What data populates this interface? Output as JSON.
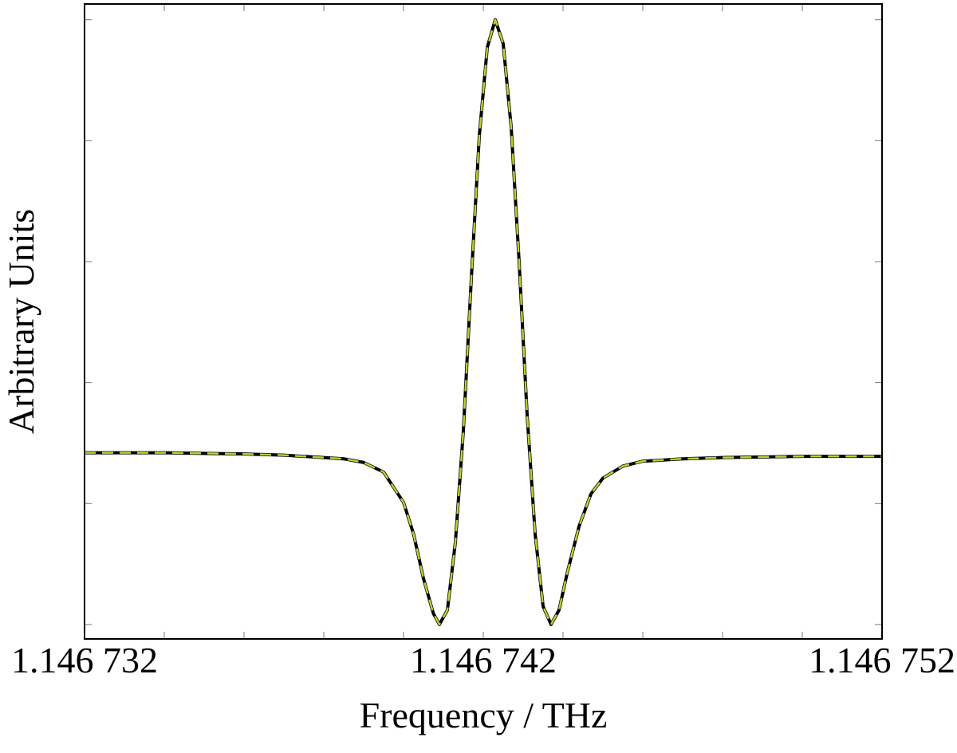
{
  "chart_data": {
    "type": "line",
    "xlabel": "Frequency / THz",
    "ylabel": "Arbitrary Units",
    "x": [
      1.146732,
      1.146734,
      1.146736,
      1.146737,
      1.146738,
      1.1467385,
      1.146739,
      1.1467395,
      1.14674,
      1.14674025,
      1.1467405,
      1.14674075,
      1.1467409,
      1.1467411,
      1.1467413,
      1.1467415,
      1.1467417,
      1.1467419,
      1.1467421,
      1.1467423,
      1.1467425,
      1.1467427,
      1.1467429,
      1.1467431,
      1.1467433,
      1.1467435,
      1.1467437,
      1.1467439,
      1.1467441,
      1.1467444,
      1.1467447,
      1.146745,
      1.1467455,
      1.146746,
      1.146747,
      1.146748,
      1.14675,
      1.146752
    ],
    "series": [
      {
        "color": "#000000",
        "dash": "solid",
        "values": [
          1.42,
          1.42,
          1.41,
          1.4,
          1.38,
          1.37,
          1.34,
          1.26,
          1.01,
          0.75,
          0.38,
          0.09,
          0.0,
          0.12,
          0.68,
          1.6,
          2.86,
          4.04,
          4.77,
          5.0,
          4.8,
          4.11,
          2.99,
          1.73,
          0.75,
          0.15,
          0.0,
          0.12,
          0.42,
          0.81,
          1.08,
          1.21,
          1.31,
          1.35,
          1.37,
          1.38,
          1.39,
          1.39
        ]
      },
      {
        "color": "#b5d334",
        "dash": "dashed",
        "values": [
          1.42,
          1.42,
          1.41,
          1.4,
          1.38,
          1.37,
          1.34,
          1.26,
          1.01,
          0.75,
          0.38,
          0.09,
          0.0,
          0.12,
          0.68,
          1.6,
          2.86,
          4.04,
          4.77,
          5.0,
          4.8,
          4.11,
          2.99,
          1.73,
          0.75,
          0.15,
          0.0,
          0.12,
          0.42,
          0.81,
          1.08,
          1.21,
          1.31,
          1.35,
          1.37,
          1.38,
          1.39,
          1.39
        ]
      }
    ],
    "xlim": [
      1.146732,
      1.146752
    ],
    "xticks": [
      {
        "value": 1.146732,
        "label": "1.146 732"
      },
      {
        "value": 1.146742,
        "label": "1.146 742"
      },
      {
        "value": 1.146752,
        "label": "1.146 752"
      }
    ],
    "xminorticks": [
      1.146734,
      1.146736,
      1.146738,
      1.14674,
      1.146744,
      1.146746,
      1.146748,
      1.14675
    ],
    "ylim": [
      -0.119,
      5.13
    ],
    "yticks": [
      0,
      1,
      2,
      3,
      4,
      5
    ]
  }
}
